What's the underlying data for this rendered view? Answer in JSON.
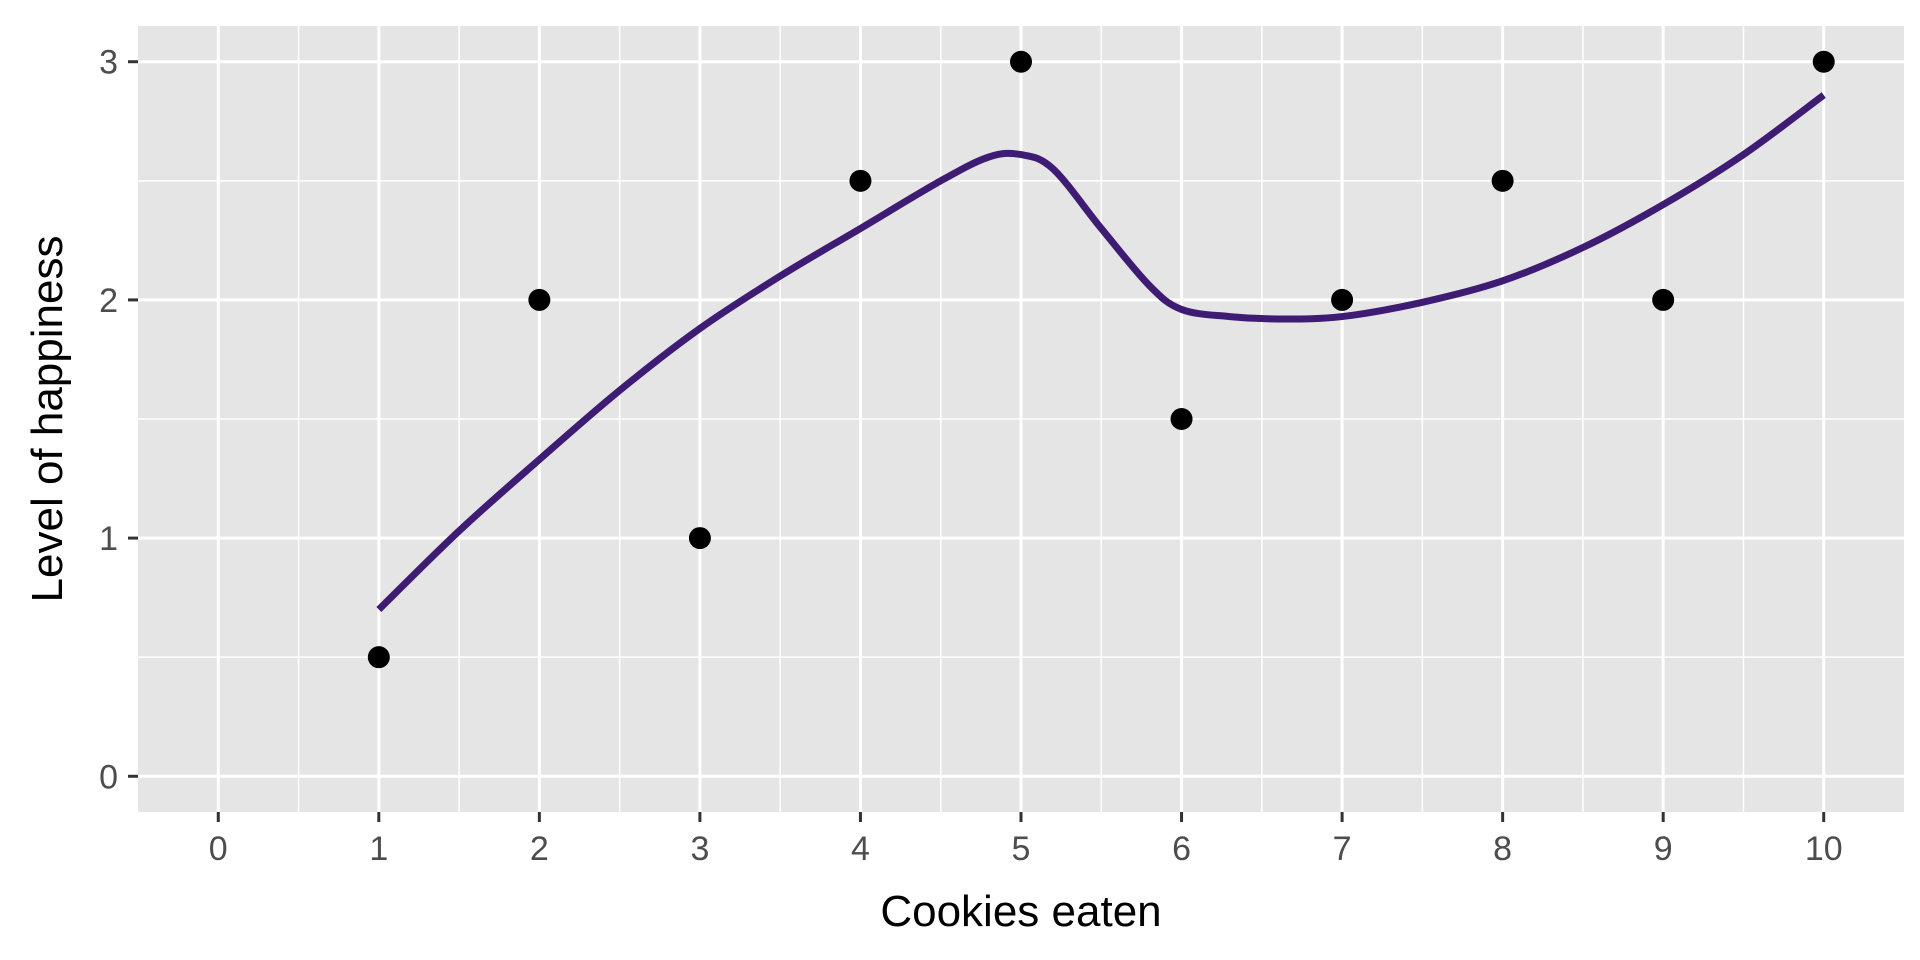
{
  "chart_data": {
    "type": "scatter",
    "xlabel": "Cookies eaten",
    "ylabel": "Level of happiness",
    "xlim": [
      -0.5,
      10.5
    ],
    "ylim": [
      -0.15,
      3.15
    ],
    "x_ticks": [
      0,
      1,
      2,
      3,
      4,
      5,
      6,
      7,
      8,
      9,
      10
    ],
    "y_ticks": [
      0,
      1,
      2,
      3
    ],
    "grid": true,
    "legend": "none",
    "colors": {
      "panel": "#e5e5e5",
      "grid": "#ffffff",
      "points": "#000000",
      "smooth": "#3f1c73",
      "tick_text": "#4d4d4d"
    },
    "points": {
      "x": [
        1,
        2,
        3,
        4,
        5,
        6,
        7,
        8,
        9,
        10
      ],
      "y": [
        0.5,
        2,
        1,
        2.5,
        3,
        1.5,
        2,
        2.5,
        2,
        3
      ]
    },
    "smooth_line": {
      "x": [
        1,
        1.5,
        2,
        2.5,
        3,
        3.5,
        4,
        4.5,
        4.8,
        5,
        5.2,
        5.5,
        5.8,
        6,
        6.3,
        6.6,
        7,
        7.5,
        8,
        8.5,
        9,
        9.5,
        10
      ],
      "y": [
        0.7,
        1.03,
        1.33,
        1.62,
        1.88,
        2.1,
        2.3,
        2.5,
        2.6,
        2.61,
        2.55,
        2.3,
        2.06,
        1.96,
        1.93,
        1.92,
        1.93,
        1.99,
        2.08,
        2.22,
        2.4,
        2.61,
        2.86
      ]
    }
  }
}
